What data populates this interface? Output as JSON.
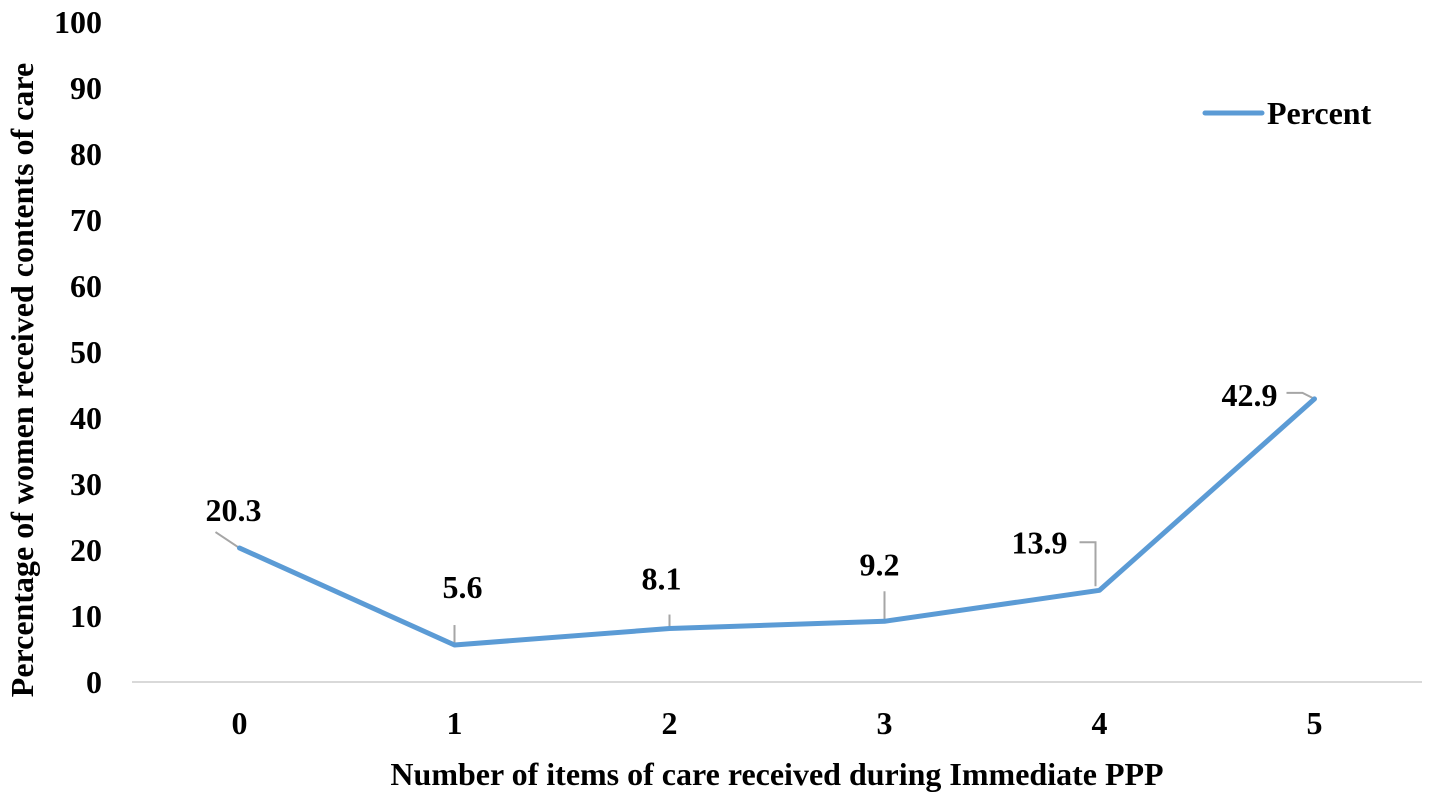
{
  "chart_data": {
    "type": "line",
    "title": "",
    "xlabel": "Number of items of care received during Immediate PPP",
    "ylabel": "Percentage of women received contents of care",
    "categories": [
      "0",
      "1",
      "2",
      "3",
      "4",
      "5"
    ],
    "series": [
      {
        "name": "Percent",
        "color": "#5b9bd5",
        "values": [
          20.3,
          5.6,
          8.1,
          9.2,
          13.9,
          42.9
        ],
        "labels": [
          "20.3",
          "5.6",
          "8.1",
          "9.2",
          "13.9",
          "42.9"
        ]
      }
    ],
    "ylim": [
      0,
      100
    ],
    "yticks": [
      "0",
      "10",
      "20",
      "30",
      "40",
      "50",
      "60",
      "70",
      "80",
      "90",
      "100"
    ],
    "grid": false,
    "legend_position": "top-right"
  }
}
